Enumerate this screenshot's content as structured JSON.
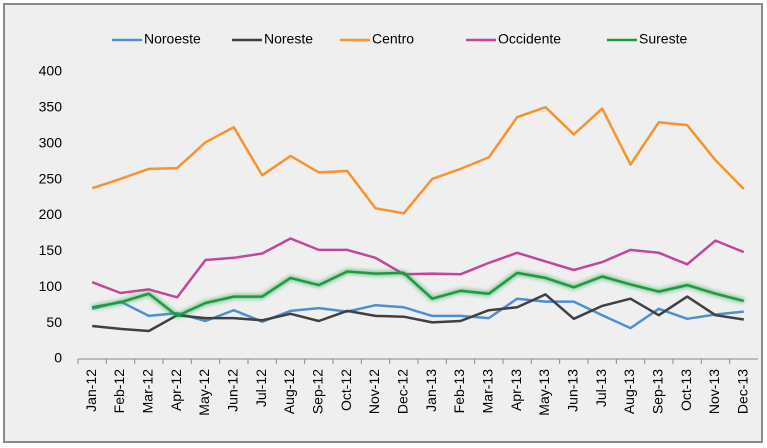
{
  "chart_data": {
    "type": "line",
    "categories": [
      "Jan-12",
      "Feb-12",
      "Mar-12",
      "Apr-12",
      "May-12",
      "Jun-12",
      "Jul-12",
      "Aug-12",
      "Sep-12",
      "Oct-12",
      "Nov-12",
      "Dec-12",
      "Jan-13",
      "Feb-13",
      "Mar-13",
      "Apr-13",
      "May-13",
      "Jun-13",
      "Jul-13",
      "Aug-13",
      "Sep-13",
      "Oct-13",
      "Nov-13",
      "Dec-13"
    ],
    "series": [
      {
        "name": "Noroeste",
        "color": "#4f8fd0",
        "values": [
          70,
          80,
          60,
          64,
          53,
          68,
          52,
          67,
          71,
          66,
          75,
          72,
          60,
          60,
          57,
          84,
          80,
          80,
          61,
          43,
          70,
          56,
          62,
          66
        ]
      },
      {
        "name": "Noreste",
        "color": "#404040",
        "values": [
          46,
          42,
          39,
          61,
          57,
          57,
          54,
          63,
          53,
          67,
          60,
          59,
          51,
          53,
          68,
          72,
          90,
          56,
          74,
          84,
          61,
          87,
          61,
          55
        ]
      },
      {
        "name": "Centro",
        "color": "#f7932f",
        "values": [
          238,
          251,
          265,
          266,
          302,
          323,
          256,
          283,
          260,
          262,
          210,
          203,
          251,
          265,
          281,
          337,
          351,
          313,
          349,
          271,
          330,
          326,
          277,
          237
        ]
      },
      {
        "name": "Occidente",
        "color": "#c0479a",
        "values": [
          107,
          92,
          97,
          86,
          138,
          141,
          147,
          168,
          152,
          152,
          141,
          118,
          119,
          118,
          134,
          148,
          136,
          124,
          135,
          152,
          148,
          132,
          165,
          149
        ]
      },
      {
        "name": "Sureste",
        "color": "#1a9b3f",
        "values": [
          72,
          79,
          91,
          60,
          78,
          87,
          87,
          113,
          103,
          122,
          119,
          120,
          84,
          95,
          91,
          120,
          113,
          100,
          115,
          104,
          94,
          103,
          91,
          81
        ]
      }
    ],
    "ylim": [
      0,
      400
    ],
    "yticks": [
      0,
      50,
      100,
      150,
      200,
      250,
      300,
      350,
      400
    ],
    "legend": "top"
  }
}
